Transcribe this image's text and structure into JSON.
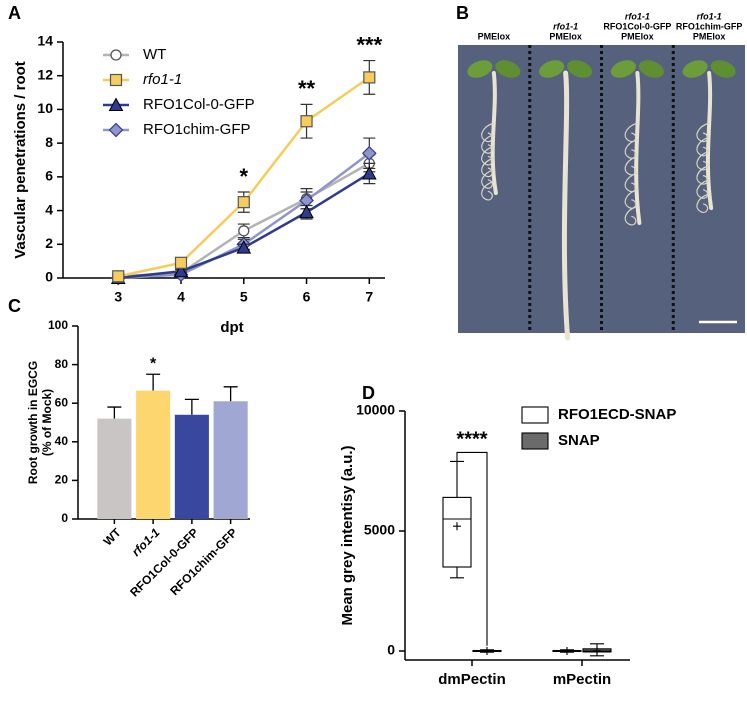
{
  "chart_data": [
    {
      "type": "line",
      "panel": "A",
      "x": [
        3,
        4,
        5,
        6,
        7
      ],
      "xlim": [
        2.12,
        7.25
      ],
      "xticks": [
        3,
        4,
        5,
        6,
        7
      ],
      "ylim": [
        0,
        14
      ],
      "yticks": [
        0,
        2,
        4,
        6,
        8,
        10,
        12,
        14
      ],
      "xlabel": "dpt",
      "ylabel": "Vascular penetrations / root",
      "legend": "upper left",
      "series": [
        {
          "name": "WT",
          "color": "#b3b3b3",
          "marker": "circle",
          "values": [
            0.1,
            0.3,
            2.8,
            4.7,
            6.8
          ],
          "errors": [
            0.1,
            0.1,
            0.4,
            0.6,
            0.5
          ]
        },
        {
          "name": "rfo1-1",
          "color": "#f6cd5c",
          "marker": "square",
          "italic": true,
          "values": [
            0.1,
            0.9,
            4.5,
            9.3,
            11.9
          ],
          "errors": [
            0.1,
            0.1,
            0.6,
            1.0,
            1.0
          ]
        },
        {
          "name": "RFO1Col-0-GFP",
          "color": "#2f3b8f",
          "marker": "triangle",
          "values": [
            0,
            0.4,
            1.8,
            3.9,
            6.2
          ],
          "errors": [
            0.05,
            0.1,
            0.2,
            0.4,
            0.6
          ]
        },
        {
          "name": "RFO1chim-GFP",
          "color": "#8f95c9",
          "marker": "diamond",
          "values": [
            0,
            0.2,
            2.0,
            4.6,
            7.4
          ],
          "errors": [
            0.05,
            0.1,
            0.3,
            0.5,
            0.9
          ]
        }
      ],
      "annotations": [
        {
          "text": "*",
          "x": 5
        },
        {
          "text": "**",
          "x": 6
        },
        {
          "text": "***",
          "x": 7
        }
      ]
    },
    {
      "type": "image",
      "panel": "B",
      "labels": [
        {
          "lines": [
            "PMElox"
          ],
          "italic": []
        },
        {
          "lines": [
            "rfo1-1",
            "PMElox"
          ],
          "italic": [
            0
          ]
        },
        {
          "lines": [
            "rfo1-1",
            "RFO1Col-0-GFP",
            "PMElox"
          ],
          "italic": [
            0
          ]
        },
        {
          "lines": [
            "rfo1-1",
            "RFO1chim-GFP",
            "PMElox"
          ],
          "italic": [
            0
          ]
        }
      ]
    },
    {
      "type": "bar",
      "panel": "C",
      "categories": [
        "WT",
        "rfo1-1",
        "RFO1Col-0-GFP",
        "RFO1chim-GFP"
      ],
      "italic_categories": [
        1
      ],
      "values": [
        52,
        66.5,
        54,
        61
      ],
      "errors": [
        6,
        8.5,
        8,
        7.5
      ],
      "colors": [
        "#c9c5c5",
        "#fdd670",
        "#3a479f",
        "#a0a7d2"
      ],
      "ylim": [
        0,
        100
      ],
      "yticks": [
        0,
        20,
        40,
        60,
        80,
        100
      ],
      "ylabel_lines": [
        "Root growth in EGCG",
        "(% of Mock)"
      ],
      "annotations": [
        {
          "text": "*",
          "category": 1
        }
      ]
    },
    {
      "type": "box",
      "panel": "D",
      "categories": [
        "dmPectin",
        "mPectin"
      ],
      "ylim": [
        -375,
        10000
      ],
      "yticks": [
        0,
        5000,
        10000
      ],
      "ylabel": "Mean grey intentisy (a.u.)",
      "legend": "upper right",
      "series": [
        {
          "name": "RFO1ECD-SNAP",
          "color": "#ffffff",
          "min": [
            3050,
            -50
          ],
          "q1": [
            3500,
            -20
          ],
          "median": [
            5500,
            0
          ],
          "q3": [
            6400,
            20
          ],
          "max": [
            7900,
            50
          ],
          "mean": [
            5200,
            0
          ]
        },
        {
          "name": "SNAP",
          "color": "#6b6b6b",
          "min": [
            -50,
            -200
          ],
          "q1": [
            -20,
            -40
          ],
          "median": [
            0,
            0
          ],
          "q3": [
            20,
            90
          ],
          "max": [
            50,
            300
          ],
          "mean": [
            0,
            10
          ]
        }
      ],
      "annotations": [
        {
          "text": "****",
          "category": 0
        }
      ]
    }
  ]
}
